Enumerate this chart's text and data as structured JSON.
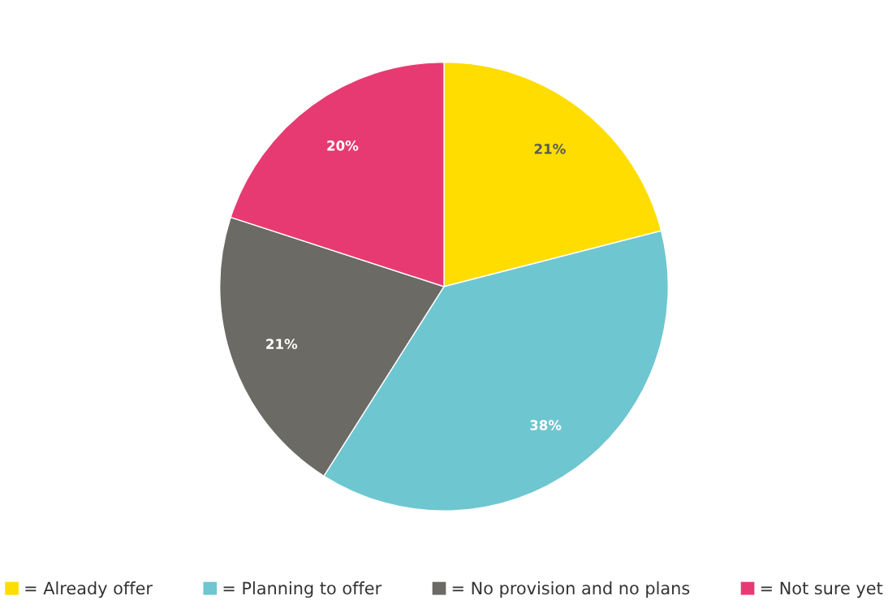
{
  "chart_data": {
    "type": "pie",
    "categories": [
      "= Already offer",
      "= Planning to offer",
      "= No provision and no plans",
      "= Not sure yet"
    ],
    "values": [
      21,
      38,
      21,
      20
    ],
    "colors": [
      "#ffdd00",
      "#6ec6d0",
      "#6b6a64",
      "#e83a72"
    ],
    "value_labels": [
      "21%",
      "38%",
      "21%",
      "20%"
    ],
    "legend": "bottom"
  }
}
